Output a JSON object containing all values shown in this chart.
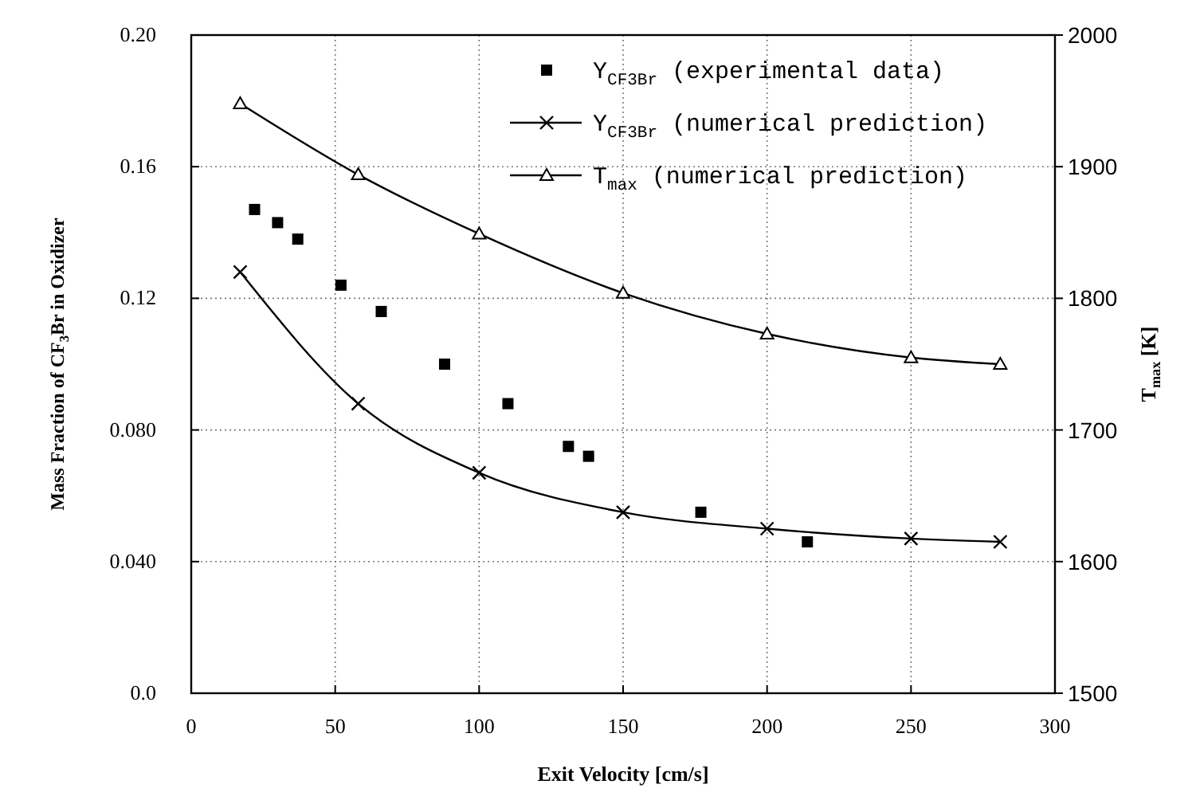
{
  "chart_data": {
    "type": "scatter",
    "xlabel": "Exit Velocity [cm/s]",
    "ylabel": "Mass Fraction of CF$_{3}$Br in Oxidizer",
    "y2label": "T$_{max}$ [K]",
    "xlim": [
      0,
      300
    ],
    "xticks": [
      0,
      50,
      100,
      150,
      200,
      250,
      300
    ],
    "ylim": [
      0,
      0.2
    ],
    "yticks": [
      {
        "value": 0,
        "label": "0.0"
      },
      {
        "value": 0.04,
        "label": "0.040"
      },
      {
        "value": 0.08,
        "label": "0.080"
      },
      0.12,
      0.16,
      {
        "value": 0.2,
        "label": "0.20"
      }
    ],
    "y2lim": [
      1500,
      2000
    ],
    "y2ticks": [
      1500,
      1600,
      1700,
      1800,
      1900,
      2000
    ],
    "grid": true,
    "legend": "top right",
    "series": [
      {
        "name": "Y$_{CF3Br}$ (experimental data)",
        "marker": "square",
        "color": "#000000",
        "x": [
          22,
          30,
          37,
          52,
          66,
          88,
          110,
          131,
          138,
          177,
          214
        ],
        "values": [
          0.147,
          0.143,
          0.138,
          0.124,
          0.116,
          0.1,
          0.088,
          0.075,
          0.072,
          0.055,
          0.046
        ]
      },
      {
        "name": "Y$_{CF3Br}$ (numerical prediction)",
        "type": "line",
        "marker": "cross",
        "line_style": "solid",
        "color": "#000000",
        "x": [
          17,
          58,
          100,
          150,
          200,
          250,
          281
        ],
        "values": [
          0.128,
          0.088,
          0.067,
          0.055,
          0.05,
          0.047,
          0.046
        ]
      },
      {
        "name": "T$_{max}$ (numerical prediction)",
        "type": "line",
        "marker": "triangle",
        "line_style": "solid",
        "axis": "y2",
        "color": "#000000",
        "x": [
          17,
          58,
          100,
          150,
          200,
          250,
          281
        ],
        "values": [
          1948,
          1894,
          1849,
          1804,
          1773,
          1755,
          1750
        ]
      }
    ]
  }
}
